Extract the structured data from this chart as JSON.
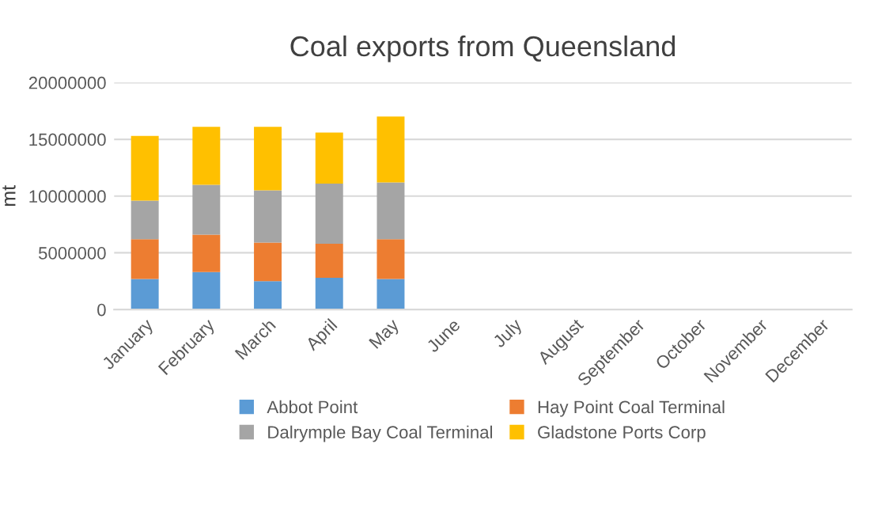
{
  "chart_data": {
    "type": "bar",
    "title": "Coal exports from Queensland",
    "ylabel": "mt",
    "stacked": true,
    "categories": [
      "January",
      "February",
      "March",
      "April",
      "May",
      "June",
      "July",
      "August",
      "September",
      "October",
      "November",
      "December"
    ],
    "series": [
      {
        "name": "Abbot Point",
        "color": "#5b9bd5",
        "values": [
          2700000,
          3300000,
          2500000,
          2800000,
          2700000,
          null,
          null,
          null,
          null,
          null,
          null,
          null
        ]
      },
      {
        "name": "Hay Point Coal Terminal",
        "color": "#ed7d31",
        "values": [
          3500000,
          3300000,
          3400000,
          3000000,
          3500000,
          null,
          null,
          null,
          null,
          null,
          null,
          null
        ]
      },
      {
        "name": "Dalrymple Bay Coal Terminal",
        "color": "#a5a5a5",
        "values": [
          3400000,
          4400000,
          4600000,
          5300000,
          5000000,
          null,
          null,
          null,
          null,
          null,
          null,
          null
        ]
      },
      {
        "name": "Gladstone Ports Corp",
        "color": "#ffc000",
        "values": [
          5700000,
          5100000,
          5600000,
          4500000,
          5800000,
          null,
          null,
          null,
          null,
          null,
          null,
          null
        ]
      }
    ],
    "ylim": [
      0,
      20000000
    ],
    "yticks": [
      0,
      5000000,
      10000000,
      15000000,
      20000000
    ],
    "grid": "y",
    "legend": "bottom"
  }
}
